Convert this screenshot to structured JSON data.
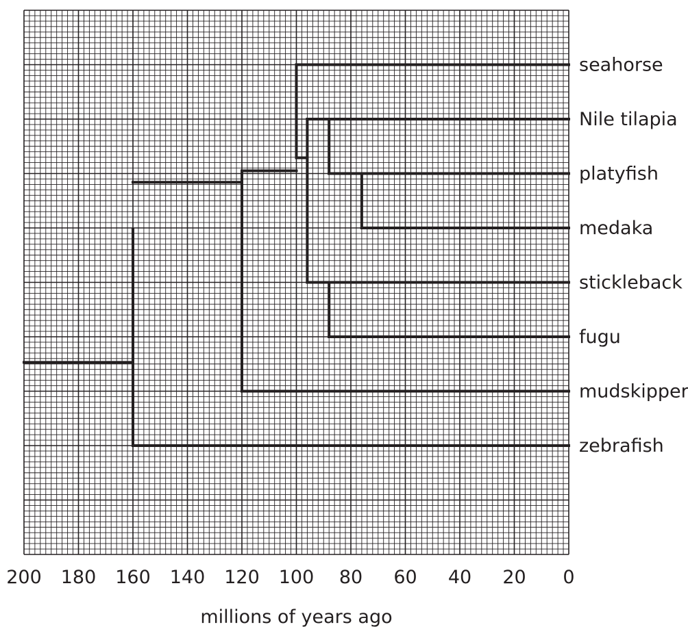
{
  "axis": {
    "xlabel": "millions of years ago",
    "ticks": [
      200,
      180,
      160,
      140,
      120,
      100,
      80,
      60,
      40,
      20,
      0
    ],
    "range": [
      200,
      0
    ]
  },
  "taxa": [
    "seahorse",
    "Nile tilapia",
    "platyfish",
    "medaka",
    "stickleback",
    "fugu",
    "mudskipper",
    "zebrafish"
  ],
  "nodes": [
    {
      "id": "root",
      "age": 200
    },
    {
      "id": "n160",
      "age": 160,
      "children": [
        "n120",
        "zebrafish"
      ]
    },
    {
      "id": "n120",
      "age": 120,
      "children": [
        "n100",
        "mudskipper"
      ]
    },
    {
      "id": "n100",
      "age": 100,
      "children": [
        "seahorse",
        "n96"
      ]
    },
    {
      "id": "n96",
      "age": 96,
      "children": [
        "n88a",
        "n88b"
      ]
    },
    {
      "id": "n88a",
      "age": 88,
      "children": [
        "Nile tilapia",
        "n76"
      ]
    },
    {
      "id": "n76",
      "age": 76,
      "children": [
        "platyfish",
        "medaka"
      ]
    },
    {
      "id": "n88b",
      "age": 88,
      "children": [
        "stickleback",
        "fugu"
      ]
    }
  ]
}
